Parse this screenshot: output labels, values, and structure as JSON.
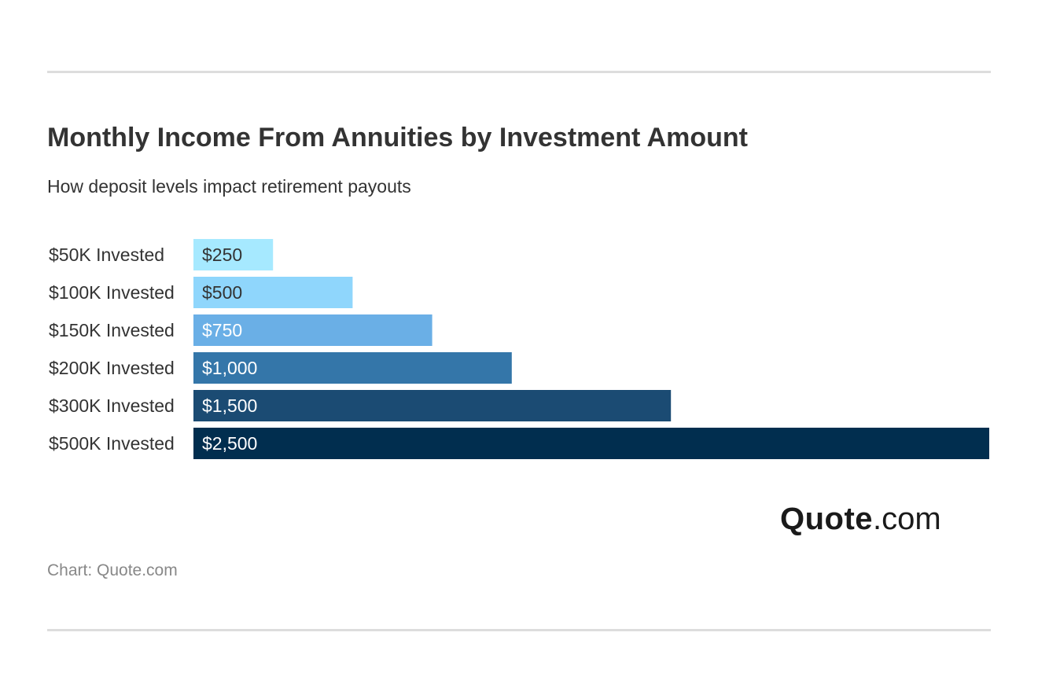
{
  "chart_data": {
    "type": "bar",
    "orientation": "horizontal",
    "title": "Monthly Income From Annuities by Investment Amount",
    "subtitle": "How deposit levels impact retirement payouts",
    "categories": [
      "$50K Invested",
      "$100K Invested",
      "$150K Invested",
      "$200K Invested",
      "$300K Invested",
      "$500K Invested"
    ],
    "values": [
      250,
      500,
      750,
      1000,
      1500,
      2500
    ],
    "value_labels": [
      "$250",
      "$500",
      "$750",
      "$1,000",
      "$1,500",
      "$2,500"
    ],
    "colors": [
      "#a6e9ff",
      "#8fd6fc",
      "#6aafe6",
      "#3476a9",
      "#1b4b73",
      "#012e4f"
    ],
    "label_colors": [
      "#333333",
      "#333333",
      "#ffffff",
      "#ffffff",
      "#ffffff",
      "#ffffff"
    ],
    "xlim": [
      0,
      2500
    ],
    "grid": false,
    "legend": "none"
  },
  "branding": {
    "logo_brand": "Quote",
    "logo_tld": ".com",
    "source": "Chart: Quote.com"
  }
}
